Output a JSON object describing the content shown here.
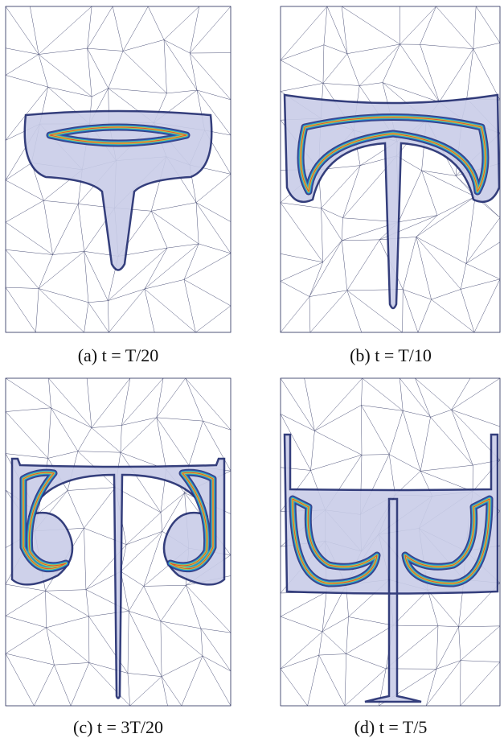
{
  "panels": [
    {
      "caption": "(a) t = T/20"
    },
    {
      "caption": "(b) t = T/10"
    },
    {
      "caption": "(c) t = 3T/20"
    },
    {
      "caption": "(d) t = T/5"
    }
  ]
}
